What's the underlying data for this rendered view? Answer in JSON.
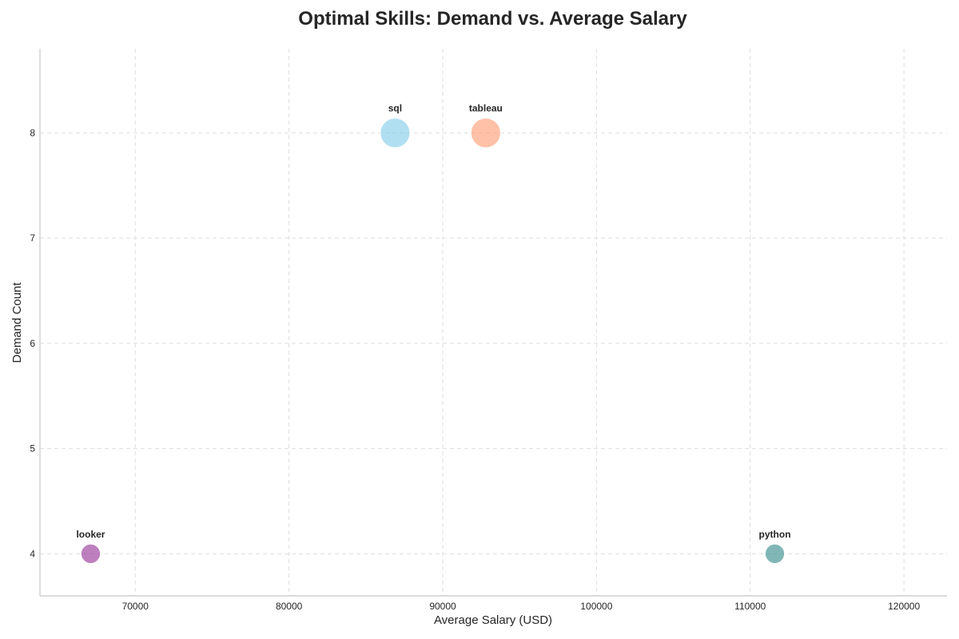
{
  "chart_data": {
    "type": "scatter",
    "title": "Optimal Skills: Demand vs. Average Salary",
    "xlabel": "Average Salary (USD)",
    "ylabel": "Demand Count",
    "xlim": [
      63800,
      122800
    ],
    "ylim": [
      3.6,
      8.8
    ],
    "xticks": [
      70000,
      80000,
      90000,
      100000,
      110000,
      120000
    ],
    "yticks": [
      4,
      5,
      6,
      7,
      8
    ],
    "grid": true,
    "points": [
      {
        "label": "sql",
        "x": 86900,
        "y": 8,
        "color": "#87ceeb"
      },
      {
        "label": "tableau",
        "x": 92800,
        "y": 8,
        "color": "#ffa07a"
      },
      {
        "label": "looker",
        "x": 67100,
        "y": 4,
        "color": "#9b3b9b"
      },
      {
        "label": "python",
        "x": 111600,
        "y": 4,
        "color": "#3d8f8f"
      }
    ]
  }
}
